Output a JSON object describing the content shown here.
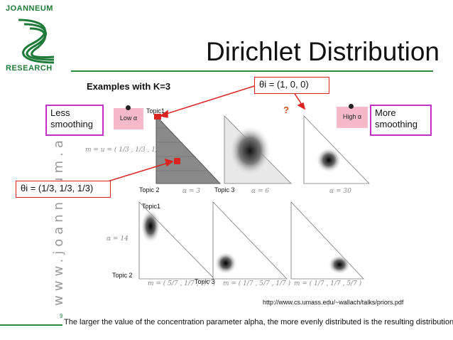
{
  "logo": {
    "top_text": "JOANNEUM",
    "bottom_text": "RESEARCH"
  },
  "title": "Dirichlet Distribution",
  "subtitle": "Examples with K=3",
  "theta_top": "θi = (1, 0, 0)",
  "theta_left": "θi = (1/3, 1/3, 1/3)",
  "less_smoothing": "Less smoothing",
  "more_smoothing": "More smoothing",
  "low_alpha": "Low α",
  "high_alpha": "High α",
  "question": "?",
  "topics": {
    "topic1": "Topic1",
    "topic2": "Topic 2",
    "topic3": "Topic 3"
  },
  "math": {
    "m_uniform": "m = u = ( 1/3 , 1/3 , 1/3 )",
    "alpha3": "α = 3",
    "alpha6": "α = 6",
    "alpha30": "α = 30",
    "alpha14": "α = 14",
    "m_a": "m = ( 5/7 , 1/7 , 1/7 )",
    "m_b": "m = ( 1/7 , 5/7 , 1/7 )",
    "m_c": "m = ( 1/7 , 1/7 , 5/7 )"
  },
  "website": "www.joanneum.at",
  "citation": "http://www.cs.umass.edu/~wallach/talks/priors.pdf",
  "page_number": "9",
  "footer": "The larger the value of the concentration parameter alpha, the more evenly distributed is the resulting distribution!",
  "colors": {
    "brand_green": "#2b8a3e",
    "red": "#dd2222",
    "magenta": "#c432c4",
    "note_pink": "#f5b9c9"
  }
}
